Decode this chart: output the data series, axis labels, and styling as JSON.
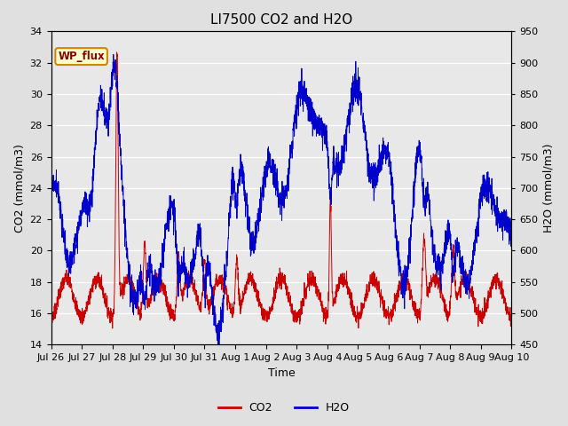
{
  "title": "LI7500 CO2 and H2O",
  "xlabel": "Time",
  "ylabel_left": "CO2 (mmol/m3)",
  "ylabel_right": "H2O (mmol/m3)",
  "ylim_left": [
    14,
    34
  ],
  "ylim_right": [
    450,
    950
  ],
  "yticks_left": [
    14,
    16,
    18,
    20,
    22,
    24,
    26,
    28,
    30,
    32,
    34
  ],
  "yticks_right": [
    450,
    500,
    550,
    600,
    650,
    700,
    750,
    800,
    850,
    900,
    950
  ],
  "xtick_labels": [
    "Jul 26",
    "Jul 27",
    "Jul 28",
    "Jul 29",
    "Jul 30",
    "Jul 31",
    "Aug 1",
    "Aug 2",
    "Aug 3",
    "Aug 4",
    "Aug 5",
    "Aug 6",
    "Aug 7",
    "Aug 8",
    "Aug 9",
    "Aug 10"
  ],
  "co2_color": "#cc0000",
  "h2o_color": "#0000cc",
  "background_color": "#e0e0e0",
  "plot_bg_color": "#e8e8e8",
  "annotation_text": "WP_flux",
  "annotation_bg": "#ffffcc",
  "annotation_border": "#cc8800",
  "annotation_text_color": "#880000",
  "legend_co2": "CO2",
  "legend_h2o": "H2O",
  "title_fontsize": 11,
  "axis_fontsize": 9,
  "tick_fontsize": 8,
  "num_points": 2880
}
